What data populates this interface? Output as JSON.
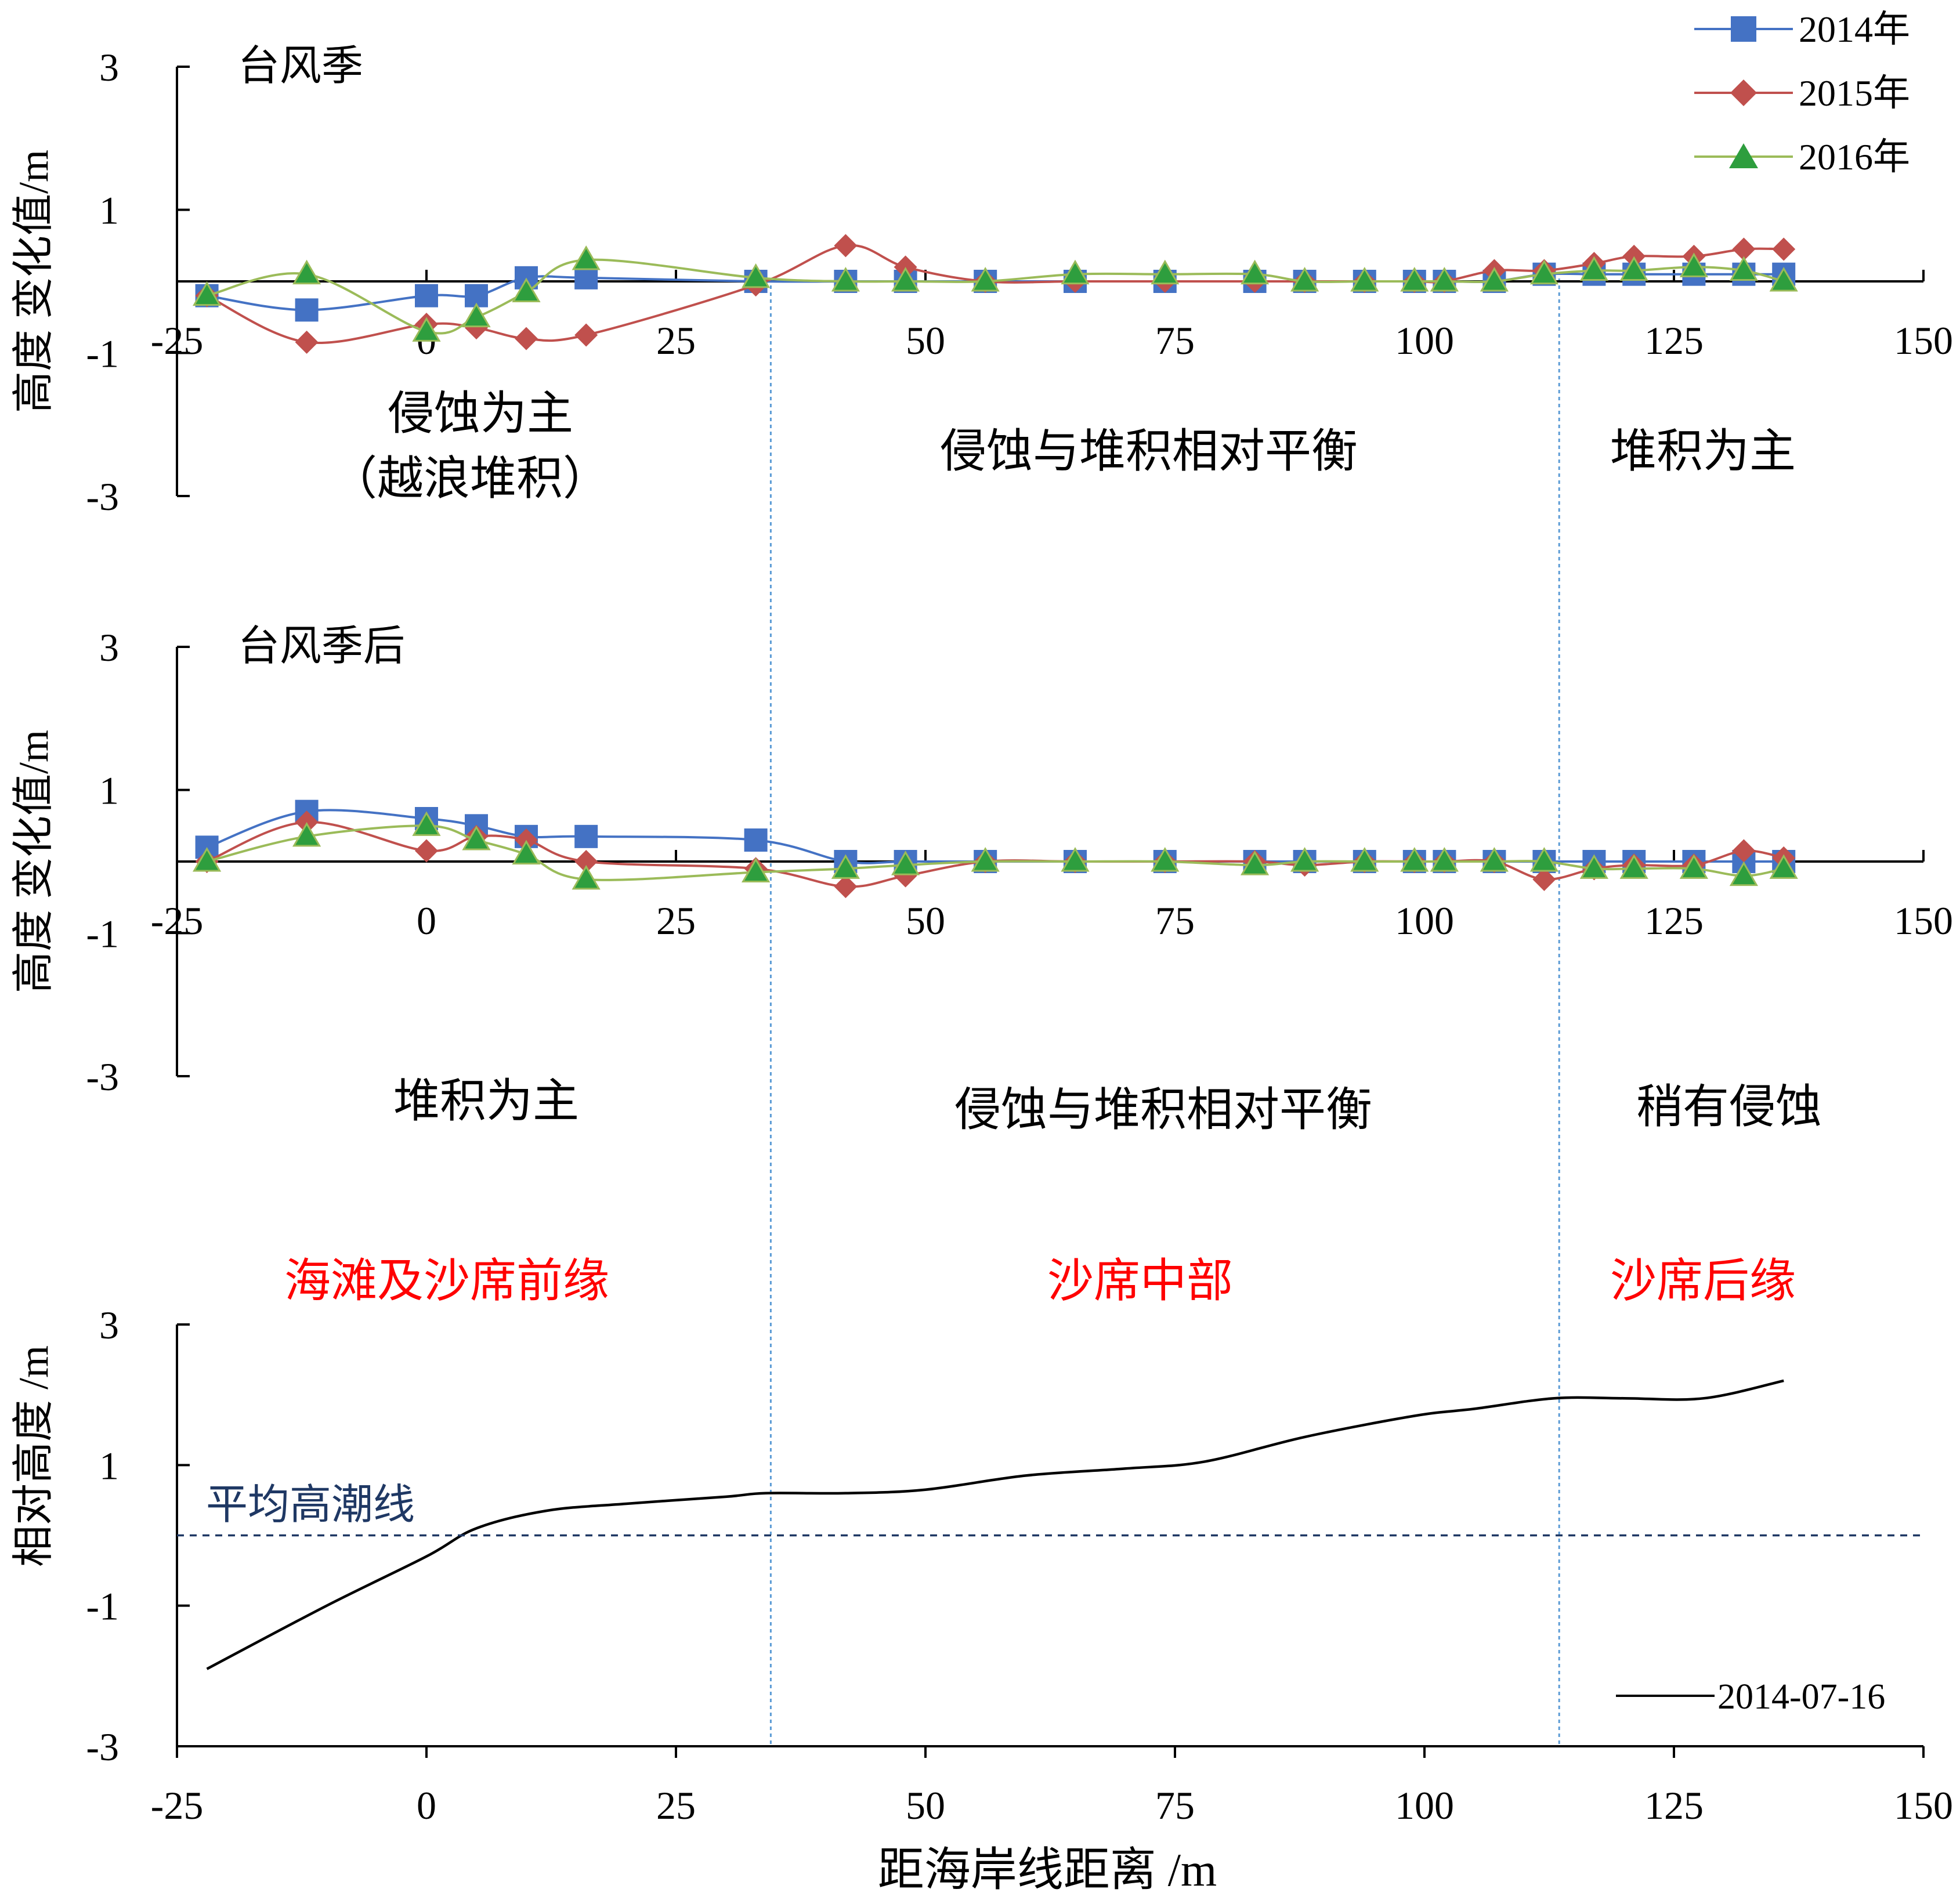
{
  "chart_data": [
    {
      "type": "line",
      "title": "台风季",
      "ylabel": "高度 变化值/m",
      "xlim": [
        -25,
        150
      ],
      "ylim": [
        -3,
        3
      ],
      "x_ticks": [
        "-25",
        "0",
        "25",
        "50",
        "75",
        "100",
        "125",
        "150"
      ],
      "y_ticks": [
        "3",
        "1",
        "-1",
        "-3"
      ],
      "zone_labels": [
        "侵蚀为主",
        "（越浪堆积）",
        "侵蚀与堆积相对平衡",
        "堆积为主"
      ],
      "legend": {
        "position": "top-right",
        "entries": [
          "2014年",
          "2015年",
          "2016年"
        ]
      },
      "series": [
        {
          "name": "2014年",
          "color": "#4472C4",
          "marker": "square",
          "points": [
            [
              -22,
              -0.2
            ],
            [
              -12,
              -0.4
            ],
            [
              0,
              -0.2
            ],
            [
              5,
              -0.2
            ],
            [
              10,
              0.05
            ],
            [
              16,
              0.05
            ],
            [
              33,
              0
            ],
            [
              42,
              0
            ],
            [
              48,
              0
            ],
            [
              56,
              0
            ],
            [
              65,
              0
            ],
            [
              74,
              0
            ],
            [
              83,
              0
            ],
            [
              88,
              0
            ],
            [
              94,
              0
            ],
            [
              99,
              0
            ],
            [
              102,
              0
            ],
            [
              107,
              0
            ],
            [
              112,
              0.1
            ],
            [
              117,
              0.1
            ],
            [
              121,
              0.1
            ],
            [
              127,
              0.1
            ],
            [
              132,
              0.1
            ],
            [
              136,
              0.1
            ]
          ]
        },
        {
          "name": "2015年",
          "color": "#C0504D",
          "marker": "diamond",
          "points": [
            [
              -22,
              -0.2
            ],
            [
              -12,
              -0.85
            ],
            [
              0,
              -0.6
            ],
            [
              5,
              -0.65
            ],
            [
              10,
              -0.8
            ],
            [
              16,
              -0.75
            ],
            [
              33,
              -0.05
            ],
            [
              42,
              0.5
            ],
            [
              48,
              0.2
            ],
            [
              56,
              0
            ],
            [
              65,
              0
            ],
            [
              74,
              0
            ],
            [
              83,
              0
            ],
            [
              88,
              0
            ],
            [
              94,
              0
            ],
            [
              99,
              0
            ],
            [
              102,
              0
            ],
            [
              107,
              0.15
            ],
            [
              112,
              0.15
            ],
            [
              117,
              0.25
            ],
            [
              121,
              0.35
            ],
            [
              127,
              0.35
            ],
            [
              132,
              0.45
            ],
            [
              136,
              0.45
            ]
          ]
        },
        {
          "name": "2016年",
          "color": "#9BBB59",
          "marker": "triangle",
          "points": [
            [
              -22,
              -0.2
            ],
            [
              -12,
              0.1
            ],
            [
              0,
              -0.7
            ],
            [
              5,
              -0.5
            ],
            [
              10,
              -0.15
            ],
            [
              16,
              0.3
            ],
            [
              33,
              0.05
            ],
            [
              42,
              0
            ],
            [
              48,
              0
            ],
            [
              56,
              0
            ],
            [
              65,
              0.1
            ],
            [
              74,
              0.1
            ],
            [
              83,
              0.1
            ],
            [
              88,
              0
            ],
            [
              94,
              0
            ],
            [
              99,
              0
            ],
            [
              102,
              0
            ],
            [
              107,
              0
            ],
            [
              112,
              0.1
            ],
            [
              117,
              0.15
            ],
            [
              121,
              0.15
            ],
            [
              127,
              0.2
            ],
            [
              132,
              0.15
            ],
            [
              136,
              0
            ]
          ]
        }
      ]
    },
    {
      "type": "line",
      "title": "台风季后",
      "ylabel": "高度 变化值/m",
      "xlim": [
        -25,
        150
      ],
      "ylim": [
        -3,
        3
      ],
      "x_ticks": [
        "-25",
        "0",
        "25",
        "50",
        "75",
        "100",
        "125",
        "150"
      ],
      "y_ticks": [
        "3",
        "1",
        "-1",
        "-3"
      ],
      "zone_labels": [
        "堆积为主",
        "侵蚀与堆积相对平衡",
        "稍有侵蚀"
      ],
      "series": [
        {
          "name": "2014年",
          "color": "#4472C4",
          "marker": "square",
          "points": [
            [
              -22,
              0.2
            ],
            [
              -12,
              0.7
            ],
            [
              0,
              0.6
            ],
            [
              5,
              0.5
            ],
            [
              10,
              0.35
            ],
            [
              16,
              0.35
            ],
            [
              33,
              0.3
            ],
            [
              42,
              0
            ],
            [
              48,
              0
            ],
            [
              56,
              0
            ],
            [
              65,
              0
            ],
            [
              74,
              0
            ],
            [
              83,
              0
            ],
            [
              88,
              0
            ],
            [
              94,
              0
            ],
            [
              99,
              0
            ],
            [
              102,
              0
            ],
            [
              107,
              0
            ],
            [
              112,
              0
            ],
            [
              117,
              0
            ],
            [
              121,
              0
            ],
            [
              127,
              0
            ],
            [
              132,
              0
            ],
            [
              136,
              0
            ]
          ]
        },
        {
          "name": "2015年",
          "color": "#C0504D",
          "marker": "diamond",
          "points": [
            [
              -22,
              0
            ],
            [
              -12,
              0.55
            ],
            [
              0,
              0.15
            ],
            [
              5,
              0.35
            ],
            [
              10,
              0.3
            ],
            [
              16,
              0
            ],
            [
              33,
              -0.1
            ],
            [
              42,
              -0.35
            ],
            [
              48,
              -0.2
            ],
            [
              56,
              0
            ],
            [
              65,
              0
            ],
            [
              74,
              0
            ],
            [
              83,
              0
            ],
            [
              88,
              -0.05
            ],
            [
              94,
              0
            ],
            [
              99,
              0
            ],
            [
              102,
              0
            ],
            [
              107,
              0
            ],
            [
              112,
              -0.25
            ],
            [
              117,
              -0.1
            ],
            [
              121,
              -0.05
            ],
            [
              127,
              -0.05
            ],
            [
              132,
              0.15
            ],
            [
              136,
              0.05
            ]
          ]
        },
        {
          "name": "2016年",
          "color": "#9BBB59",
          "marker": "triangle",
          "points": [
            [
              -22,
              0
            ],
            [
              -12,
              0.35
            ],
            [
              0,
              0.5
            ],
            [
              5,
              0.3
            ],
            [
              10,
              0.1
            ],
            [
              16,
              -0.25
            ],
            [
              33,
              -0.15
            ],
            [
              42,
              -0.1
            ],
            [
              48,
              -0.05
            ],
            [
              56,
              0
            ],
            [
              65,
              0
            ],
            [
              74,
              0
            ],
            [
              83,
              -0.05
            ],
            [
              88,
              0
            ],
            [
              94,
              0
            ],
            [
              99,
              0
            ],
            [
              102,
              0
            ],
            [
              107,
              0
            ],
            [
              112,
              0
            ],
            [
              117,
              -0.1
            ],
            [
              121,
              -0.1
            ],
            [
              127,
              -0.1
            ],
            [
              132,
              -0.2
            ],
            [
              136,
              -0.1
            ]
          ]
        }
      ]
    },
    {
      "type": "line",
      "xlabel": "距海岸线距离 /m",
      "ylabel": "相对高度 /m",
      "xlim": [
        -25,
        150
      ],
      "ylim": [
        -3,
        3
      ],
      "x_ticks": [
        "-25",
        "0",
        "25",
        "50",
        "75",
        "100",
        "125",
        "150"
      ],
      "y_ticks": [
        "3",
        "1",
        "-1",
        "-3"
      ],
      "zone_labels": [
        "海滩及沙席前缘",
        "沙席中部",
        "沙席后缘"
      ],
      "reference_line": {
        "label": "平均高潮线",
        "y": 0
      },
      "legend": {
        "position": "bottom-right",
        "entries": [
          "2014-07-16"
        ]
      },
      "series": [
        {
          "name": "2014-07-16",
          "color": "#000000",
          "points": [
            [
              -22,
              -1.9
            ],
            [
              -10,
              -1.0
            ],
            [
              0,
              -0.3
            ],
            [
              5,
              0.1
            ],
            [
              12,
              0.35
            ],
            [
              20,
              0.45
            ],
            [
              30,
              0.55
            ],
            [
              34,
              0.6
            ],
            [
              42,
              0.6
            ],
            [
              50,
              0.65
            ],
            [
              60,
              0.85
            ],
            [
              70,
              0.95
            ],
            [
              78,
              1.05
            ],
            [
              88,
              1.4
            ],
            [
              99,
              1.7
            ],
            [
              105,
              1.8
            ],
            [
              113,
              1.95
            ],
            [
              120,
              1.95
            ],
            [
              128,
              1.95
            ],
            [
              136,
              2.2
            ]
          ]
        }
      ]
    }
  ],
  "boundary_x": [
    34.5,
    113.5
  ],
  "colors": {
    "zone_text": "#FF0000",
    "reference_line": "#1F3864",
    "boundary_line": "#5B9BD5",
    "axis": "#000000"
  }
}
